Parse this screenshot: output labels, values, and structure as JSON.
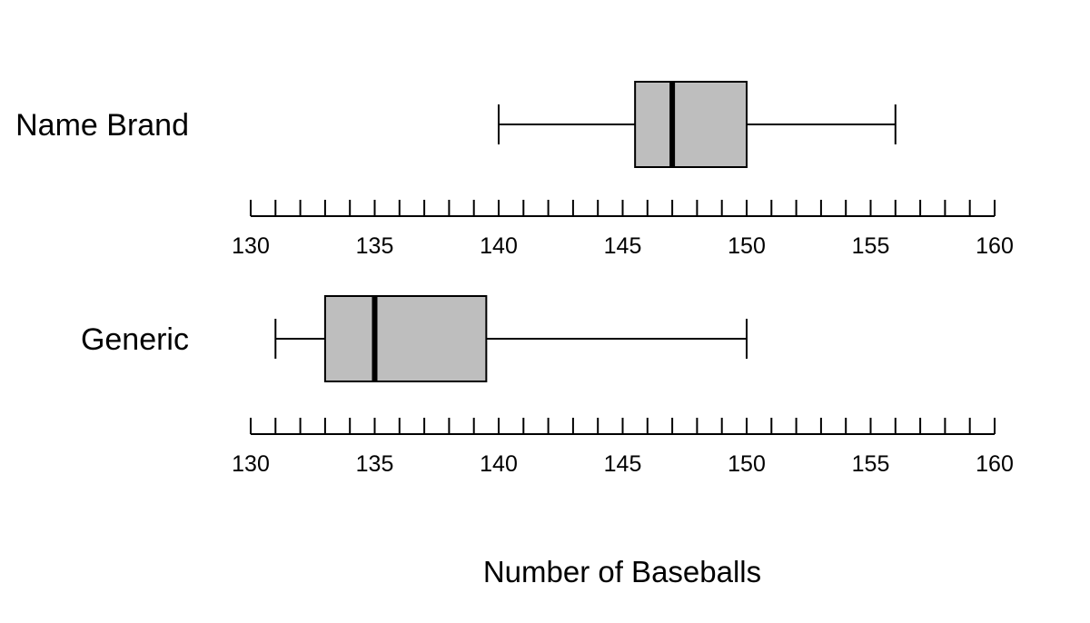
{
  "chart_data": {
    "type": "boxplot",
    "xlabel": "Number of Baseballs",
    "xlim": [
      130,
      160
    ],
    "tick_labels": [
      "130",
      "135",
      "140",
      "145",
      "150",
      "155",
      "160"
    ],
    "minor_tick_step": 1,
    "grid": false,
    "box_fill": "#bebebe",
    "line_color": "#000000",
    "series": [
      {
        "name": "Name Brand",
        "min": 140,
        "q1": 145.5,
        "median": 147,
        "q3": 150,
        "max": 156
      },
      {
        "name": "Generic",
        "min": 131,
        "q1": 133,
        "median": 135,
        "q3": 139.5,
        "max": 150
      }
    ]
  }
}
